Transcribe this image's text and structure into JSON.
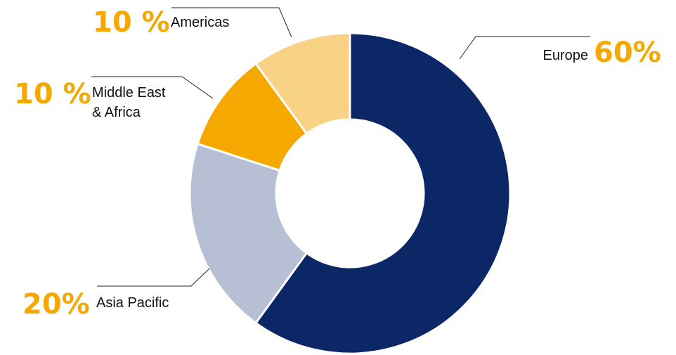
{
  "chart_data": {
    "type": "pie",
    "variant": "donut",
    "legend": "none",
    "start_angle_deg": 0,
    "direction": "clockwise",
    "slices": [
      {
        "name": "Europe",
        "label_lines": [
          "Europe"
        ],
        "value": 60,
        "pct_label": "60%",
        "color": "#0b2766"
      },
      {
        "name": "Asia Pacific",
        "label_lines": [
          "Asia Pacific"
        ],
        "value": 20,
        "pct_label": "20%",
        "color": "#b6bfd4"
      },
      {
        "name": "Middle East & Africa",
        "label_lines": [
          "Middle East",
          "& Africa"
        ],
        "value": 10,
        "pct_label": "10 %",
        "color": "#f5a800"
      },
      {
        "name": "Americas",
        "label_lines": [
          "Americas"
        ],
        "value": 10,
        "pct_label": "10 %",
        "color": "#f9d385"
      }
    ],
    "colors": {
      "percent_text": "#f5a800",
      "label_text": "#111111",
      "leader_line": "#222222",
      "separator": "#ffffff"
    }
  }
}
